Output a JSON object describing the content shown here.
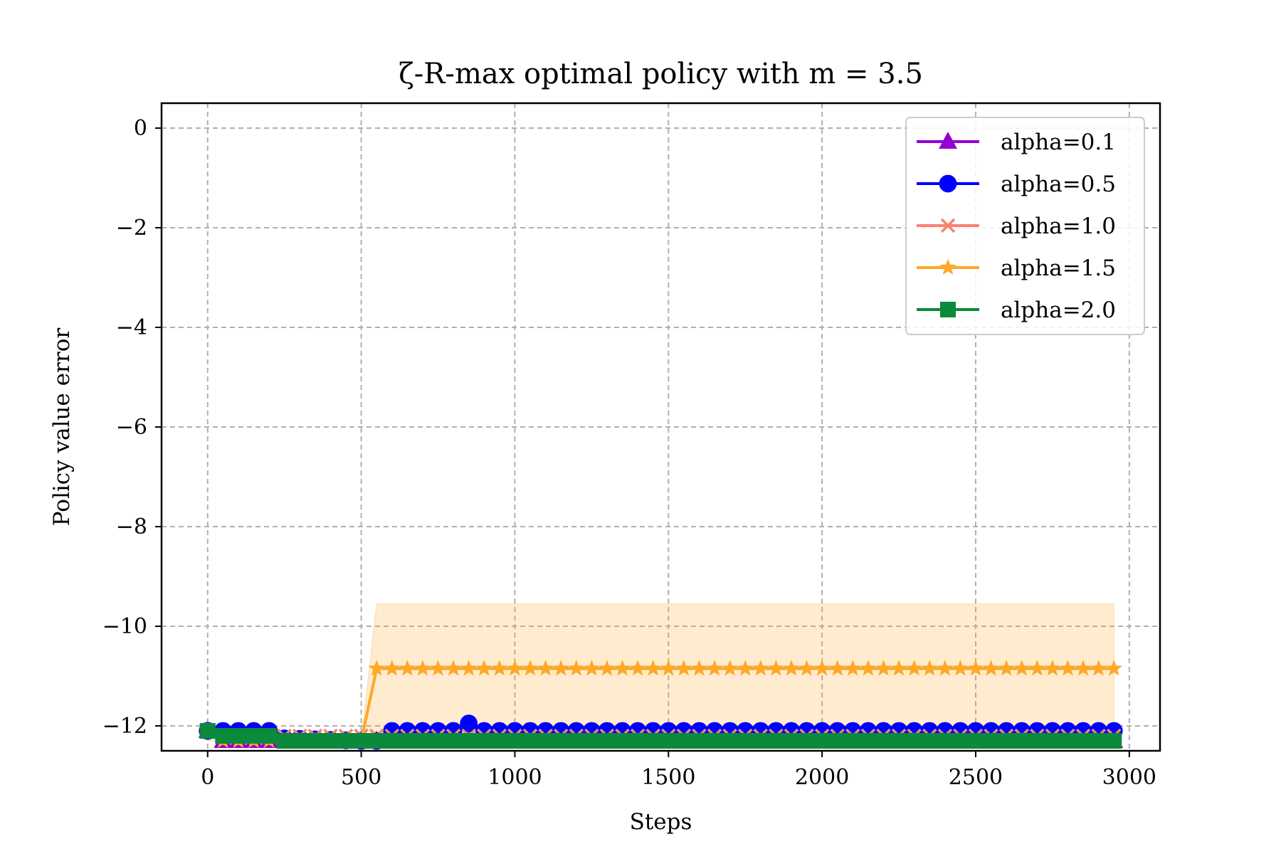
{
  "chart_data": {
    "type": "line",
    "title": "ζ-R-max optimal policy with m = 3.5",
    "xlabel": "Steps",
    "ylabel": "Policy value error",
    "xlim": [
      -150,
      3100
    ],
    "ylim": [
      -12.5,
      0.5
    ],
    "xticks": [
      0,
      500,
      1000,
      1500,
      2000,
      2500,
      3000
    ],
    "yticks": [
      0,
      -2,
      -4,
      -6,
      -8,
      -10,
      -12
    ],
    "xtick_labels": [
      "0",
      "500",
      "1000",
      "1500",
      "2000",
      "2500",
      "3000"
    ],
    "ytick_labels": [
      "0",
      "−2",
      "−4",
      "−6",
      "−8",
      "−10",
      "−12"
    ],
    "grid": true,
    "legend_position": "top-right",
    "x_step": 50,
    "x_max": 2950,
    "series": [
      {
        "name": "alpha=0.1",
        "color": "#9400D3",
        "marker": "triangle",
        "keypoints": [
          [
            0,
            -12.1
          ],
          [
            50,
            -12.3
          ],
          [
            100,
            -12.3
          ],
          [
            150,
            -12.3
          ],
          [
            200,
            -12.3
          ],
          [
            250,
            -12.3
          ],
          [
            850,
            -12.3
          ],
          [
            900,
            -12.3
          ],
          [
            2950,
            -12.3
          ]
        ]
      },
      {
        "name": "alpha=0.5",
        "color": "#0000FF",
        "marker": "circle",
        "keypoints": [
          [
            0,
            -12.1
          ],
          [
            50,
            -12.1
          ],
          [
            100,
            -12.1
          ],
          [
            150,
            -12.1
          ],
          [
            200,
            -12.1
          ],
          [
            250,
            -12.25
          ],
          [
            500,
            -12.3
          ],
          [
            550,
            -12.3
          ],
          [
            600,
            -12.1
          ],
          [
            800,
            -12.1
          ],
          [
            850,
            -11.95
          ],
          [
            900,
            -12.1
          ],
          [
            2950,
            -12.1
          ]
        ]
      },
      {
        "name": "alpha=1.0",
        "color": "#FA8072",
        "marker": "x",
        "keypoints": [
          [
            0,
            -12.1
          ],
          [
            50,
            -12.2
          ],
          [
            500,
            -12.2
          ],
          [
            550,
            -12.2
          ],
          [
            2950,
            -12.2
          ]
        ]
      },
      {
        "name": "alpha=1.5",
        "color": "#FFA726",
        "marker": "star",
        "keypoints": [
          [
            0,
            -12.1
          ],
          [
            50,
            -12.3
          ],
          [
            500,
            -12.3
          ],
          [
            550,
            -10.85
          ],
          [
            2950,
            -10.85
          ]
        ],
        "band": {
          "color": "#FFA726",
          "lower": -12.3,
          "upper": -9.55,
          "upper_start_x": 550,
          "rise_from_x": 500
        }
      },
      {
        "name": "alpha=2.0",
        "color": "#0A8A3A",
        "marker": "square",
        "keypoints": [
          [
            0,
            -12.1
          ],
          [
            50,
            -12.2
          ],
          [
            100,
            -12.2
          ],
          [
            150,
            -12.2
          ],
          [
            200,
            -12.2
          ],
          [
            250,
            -12.3
          ],
          [
            2950,
            -12.3
          ]
        ]
      }
    ]
  }
}
